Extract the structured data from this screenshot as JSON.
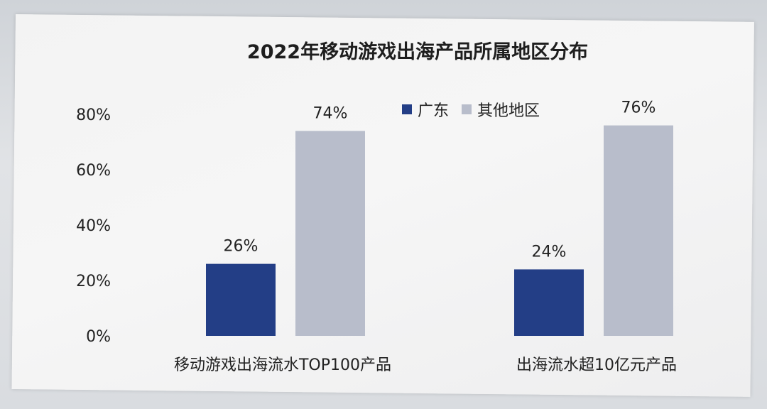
{
  "chart_data": {
    "type": "bar",
    "title": "2022年移动游戏出海产品所属地区分布",
    "categories": [
      "移动游戏出海流水TOP100产品",
      "出海流水超10亿元产品"
    ],
    "series": [
      {
        "name": "广东",
        "values": [
          26,
          24
        ],
        "labels": [
          "26%",
          "24%"
        ]
      },
      {
        "name": "其他地区",
        "values": [
          74,
          76
        ],
        "labels": [
          "74%",
          "76%"
        ]
      }
    ],
    "yticks": [
      "0%",
      "20%",
      "40%",
      "60%",
      "80%"
    ],
    "ylim": [
      0,
      80
    ],
    "legend_position": "top-center",
    "grid": false,
    "xlabel": "",
    "ylabel": ""
  },
  "colors": {
    "guangdong": "#233e86",
    "other": "#b8bdcb",
    "text": "#222222"
  }
}
